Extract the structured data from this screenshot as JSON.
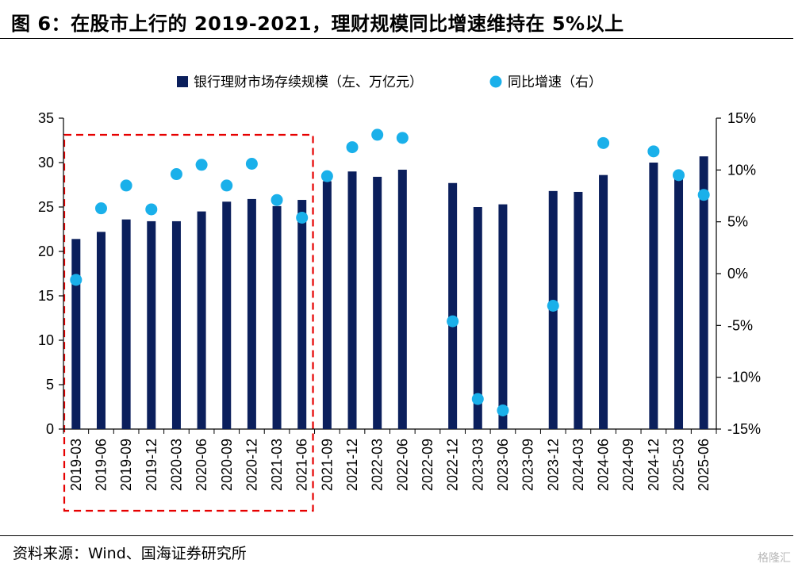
{
  "title": "图 6：在股市上行的 2019-2021，理财规模同比增速维持在 5%以上",
  "source": "资料来源：Wind、国海证券研究所",
  "watermark": "格隆汇",
  "chart_data": {
    "type": "bar+scatter",
    "categories": [
      "2019-03",
      "2019-06",
      "2019-09",
      "2019-12",
      "2020-03",
      "2020-06",
      "2020-09",
      "2020-12",
      "2021-03",
      "2021-06",
      "2021-09",
      "2021-12",
      "2022-03",
      "2022-06",
      "2022-09",
      "2022-12",
      "2023-03",
      "2023-06",
      "2023-09",
      "2023-12",
      "2024-03",
      "2024-06",
      "2024-09",
      "2024-12",
      "2025-03",
      "2025-06"
    ],
    "series": [
      {
        "name": "银行理财市场存续规模（左、万亿元）",
        "kind": "bar",
        "axis": "left",
        "color": "#0b1f5c",
        "values": [
          21.4,
          22.2,
          23.6,
          23.4,
          23.4,
          24.5,
          25.6,
          25.9,
          25.1,
          25.8,
          27.9,
          29.0,
          28.4,
          29.2,
          null,
          27.7,
          25.0,
          25.3,
          null,
          26.8,
          26.7,
          28.6,
          null,
          30.0,
          28.7,
          30.7
        ]
      },
      {
        "name": "同比增速（右）",
        "kind": "scatter",
        "axis": "right",
        "color": "#1ab0ea",
        "values": [
          -0.6,
          6.3,
          8.5,
          6.2,
          9.6,
          10.5,
          8.5,
          10.6,
          7.1,
          5.4,
          9.4,
          12.2,
          13.4,
          13.1,
          null,
          -4.6,
          -12.1,
          -13.2,
          null,
          -3.1,
          null,
          12.6,
          null,
          11.8,
          9.5,
          7.6
        ]
      }
    ],
    "y_left": {
      "min": 0,
      "max": 35,
      "step": 5,
      "ticks": [
        "0",
        "5",
        "10",
        "15",
        "20",
        "25",
        "30",
        "35"
      ]
    },
    "y_right": {
      "min": -15,
      "max": 15,
      "step": 5,
      "ticks": [
        "-15%",
        "-10%",
        "-5%",
        "0%",
        "5%",
        "10%",
        "15%"
      ]
    },
    "legend_position": "top-center",
    "grid": false,
    "highlight": {
      "from": "2019-03",
      "to": "2021-06",
      "style": "dashed",
      "color": "#e60000"
    }
  }
}
